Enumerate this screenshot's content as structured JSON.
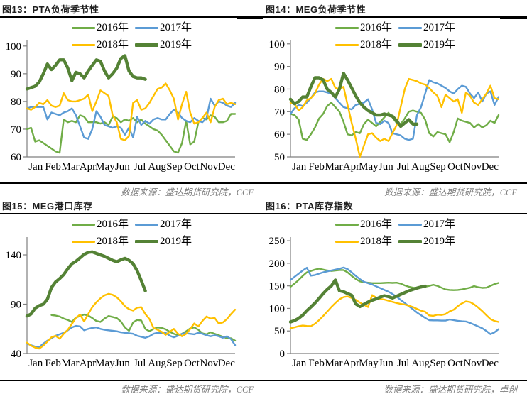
{
  "colors": {
    "y2016": "#70AD47",
    "y2017": "#5B9BD5",
    "y2018": "#FFC000",
    "y2019": "#548235",
    "axis": "#7f7f7f",
    "tick_text": "#000000",
    "rule": "#000000",
    "source_text": "#7f7f7f",
    "title_text": "#1f1f1f"
  },
  "chart_data": [
    {
      "type": "line",
      "title": "图13：PTA负荷季节性",
      "source": "数据来源：盛达期货研究院，CCF",
      "x_categories": [
        "Jan",
        "Feb",
        "Mar",
        "Apr",
        "May",
        "Jun",
        "Jul",
        "Aug",
        "Sep",
        "Oct",
        "Nov",
        "Dec"
      ],
      "x_points": 52,
      "ylim": [
        60,
        102
      ],
      "yticks": [
        60,
        70,
        80,
        90,
        100
      ],
      "grid": false,
      "legend_position": "top-center",
      "series": [
        {
          "name": "2016年",
          "color_key": "y2016",
          "emphasis": false,
          "values": [
            70,
            70.5,
            65.5,
            66,
            65,
            64,
            63,
            62,
            61.5,
            73.5,
            72.5,
            73,
            72.5,
            75,
            74.5,
            72.5,
            72.5,
            72.5,
            72,
            72.5,
            71.5,
            74.5,
            74,
            72.5,
            73.5,
            73,
            74,
            72.5,
            73.5,
            72,
            71,
            70,
            69.5,
            68,
            66,
            64,
            62,
            61.5,
            65,
            73,
            64.5,
            65.5,
            72.5,
            74,
            73.5,
            75,
            74.5,
            72.5,
            72.5,
            73,
            75.5,
            75.5
          ]
        },
        {
          "name": "2017年",
          "color_key": "y2017",
          "emphasis": false,
          "values": [
            77.5,
            78,
            78,
            78,
            78,
            73.5,
            76,
            75.5,
            75,
            76,
            76.5,
            77.5,
            75,
            71,
            67,
            66.5,
            70,
            76.5,
            74.5,
            71.5,
            71,
            70.5,
            71,
            70.5,
            68,
            70.5,
            67,
            74.5,
            71.5,
            73,
            72,
            73.5,
            74,
            73.5,
            73.5,
            75.5,
            77,
            76,
            74,
            73,
            72.5,
            74,
            73,
            72.5,
            74,
            81,
            78.5,
            80,
            79.5,
            78.5,
            78,
            79.5
          ]
        },
        {
          "name": "2018年",
          "color_key": "y2018",
          "emphasis": false,
          "values": [
            77.5,
            77,
            78,
            79.5,
            79,
            80.5,
            78.5,
            78,
            78.5,
            83,
            80.5,
            80,
            80,
            80.5,
            81,
            82.5,
            76.5,
            80,
            84,
            83,
            82,
            75,
            72.5,
            66.5,
            66,
            67.5,
            79.5,
            80.5,
            77,
            77.5,
            79.5,
            82,
            84.5,
            85,
            86.5,
            84,
            81,
            73.5,
            79,
            83.5,
            76,
            72,
            72.5,
            74,
            76,
            72.5,
            78,
            80.5,
            81,
            79,
            79.5,
            79
          ]
        },
        {
          "name": "2019年",
          "color_key": "y2019",
          "emphasis": true,
          "values": [
            84.5,
            85,
            85.5,
            87,
            90,
            93.5,
            91.5,
            93,
            95,
            95,
            92,
            87.5,
            90.5,
            90,
            88.5,
            91,
            93,
            95,
            94.5,
            91,
            88.5,
            90,
            92,
            95.5,
            96.5,
            91,
            89,
            88.5,
            88.5,
            88
          ]
        }
      ]
    },
    {
      "type": "line",
      "title": "图14：MEG负荷季节性",
      "source": "数据来源：盛达期货研究院，CCF",
      "x_categories": [
        "Jan",
        "Feb",
        "Mar",
        "Apr",
        "May",
        "Jun",
        "Jul",
        "Aug",
        "Sep",
        "Oct",
        "Nov",
        "Dec"
      ],
      "x_points": 52,
      "ylim": [
        50,
        101.5
      ],
      "yticks": [
        50,
        60,
        70,
        80,
        90,
        100
      ],
      "grid": false,
      "legend_position": "top-center",
      "series": [
        {
          "name": "2016年",
          "color_key": "y2016",
          "emphasis": false,
          "values": [
            69,
            68.5,
            66.5,
            58,
            57.5,
            60,
            63,
            67,
            69,
            72.5,
            74,
            72,
            70,
            65.5,
            60,
            59.5,
            61,
            60.5,
            64.5,
            66.5,
            65,
            63.5,
            65.5,
            67.5,
            69.5,
            67.5,
            65,
            64.5,
            67,
            70,
            70.5,
            70,
            69.5,
            66.5,
            60.5,
            59,
            61,
            60.5,
            60,
            56.5,
            61,
            67,
            66,
            65.5,
            65,
            63,
            64.5,
            63,
            64,
            66,
            65,
            68.5
          ]
        },
        {
          "name": "2017年",
          "color_key": "y2017",
          "emphasis": false,
          "values": [
            69,
            71.5,
            73,
            72.5,
            74,
            76,
            78.5,
            79,
            79,
            78.5,
            78,
            76,
            74,
            72,
            71.5,
            71,
            73,
            73.5,
            74,
            75.5,
            71,
            65,
            64.5,
            66,
            65,
            60.5,
            60,
            59.5,
            58,
            57.5,
            58,
            68.5,
            72,
            78,
            84,
            83,
            82.5,
            81.5,
            80.5,
            79,
            78,
            80,
            81.5,
            81,
            78,
            76,
            78.5,
            74.5,
            78,
            79,
            73,
            76.5
          ]
        },
        {
          "name": "2018年",
          "color_key": "y2018",
          "emphasis": false,
          "values": [
            74,
            73.5,
            70.5,
            72,
            75,
            76,
            78,
            82,
            84.5,
            83.5,
            84.5,
            80.5,
            80,
            81,
            73,
            65,
            58,
            50,
            55,
            60,
            60.5,
            58.5,
            57,
            58,
            57,
            60.5,
            64,
            72,
            80,
            84.5,
            84,
            83.5,
            82.5,
            82,
            80.5,
            78.5,
            77,
            72,
            77.5,
            76,
            74.5,
            75.5,
            69.5,
            78.5,
            77,
            74,
            73,
            75.5,
            78,
            81.5,
            76,
            75.5
          ]
        },
        {
          "name": "2019年",
          "color_key": "y2019",
          "emphasis": true,
          "values": [
            75.5,
            73.5,
            74.5,
            76.5,
            76.5,
            81,
            85,
            85,
            84,
            80,
            78.5,
            76.5,
            80,
            87,
            84,
            80.5,
            77,
            74,
            72,
            70.5,
            69.5,
            68.5,
            68.5,
            69,
            68.5,
            68,
            66,
            63.5,
            65,
            66.5,
            64.5,
            64.5
          ]
        }
      ]
    },
    {
      "type": "line",
      "title": "图15：MEG港口库存",
      "source": "数据来源：盛达期货研究院，CCF",
      "x_categories": [
        "Jan",
        "Feb",
        "Mar",
        "Apr",
        "May",
        "Jun",
        "Jul",
        "Aug",
        "Sep",
        "Oct",
        "Nov",
        "Dec"
      ],
      "x_points": 52,
      "ylim": [
        40,
        158
      ],
      "yticks": [
        40,
        90,
        140
      ],
      "grid": false,
      "legend_position": "top-center",
      "series": [
        {
          "name": "2016年",
          "color_key": "y2016",
          "emphasis": false,
          "values": [
            null,
            null,
            null,
            null,
            null,
            null,
            79,
            78.5,
            77.5,
            75.5,
            74,
            72,
            76.5,
            78,
            79.5,
            78.5,
            76,
            73,
            72,
            75.5,
            78,
            77,
            76,
            72.5,
            66.5,
            63,
            71.5,
            74,
            73.5,
            65,
            62.5,
            65,
            66.5,
            66,
            64.5,
            62,
            60,
            58.5,
            60,
            62.5,
            65.5,
            66.5,
            64,
            60.5,
            59.5,
            61.5,
            60,
            58.5,
            57,
            55.5,
            55.5,
            53
          ]
        },
        {
          "name": "2017年",
          "color_key": "y2017",
          "emphasis": false,
          "values": [
            50,
            48.5,
            47,
            46.5,
            50,
            53,
            55.5,
            58,
            59.5,
            61,
            63.5,
            66.5,
            68,
            67.5,
            63.5,
            65,
            66,
            66.5,
            65,
            64,
            63.5,
            63,
            62.5,
            61.5,
            61,
            60.5,
            60,
            58,
            57,
            56,
            57.5,
            60,
            61,
            60.5,
            61,
            58,
            56.5,
            58,
            60,
            60.5,
            60,
            59.5,
            61,
            60,
            58.5,
            57.5,
            58.5,
            57.5,
            56,
            57.5,
            54.5,
            48.5
          ]
        },
        {
          "name": "2018年",
          "color_key": "y2018",
          "emphasis": false,
          "values": [
            51,
            48,
            46,
            45,
            48,
            52,
            56.5,
            58,
            55,
            60,
            64,
            70,
            76,
            79.5,
            72.5,
            80,
            87,
            92,
            96,
            99,
            100.5,
            99.5,
            97,
            93,
            88,
            85,
            83.5,
            86.5,
            87,
            80,
            75,
            66,
            64,
            62,
            59,
            62,
            65,
            60,
            57.5,
            60,
            65,
            70.5,
            67.5,
            73,
            77.5,
            75.5,
            76,
            70.5,
            71.5,
            75,
            80,
            84.5
          ]
        },
        {
          "name": "2019年",
          "color_key": "y2019",
          "emphasis": true,
          "values": [
            78,
            80,
            86,
            88.5,
            90,
            95,
            107,
            112.5,
            116,
            120,
            126,
            131,
            133.5,
            137,
            140.5,
            142.5,
            143,
            141.5,
            140,
            138.5,
            136.5,
            134.5,
            133,
            135,
            136.5,
            134.5,
            131,
            124,
            114,
            103.5
          ]
        }
      ]
    },
    {
      "type": "line",
      "title": "图16：PTA库存指数",
      "source": "数据来源：盛达期货研究院，卓创",
      "x_categories": [
        "Jan",
        "Feb",
        "Mar",
        "Apr",
        "May",
        "Jun",
        "Jul",
        "Aug",
        "Sep",
        "Oct",
        "Nov",
        "Dec"
      ],
      "x_points": 52,
      "ylim": [
        0,
        258
      ],
      "yticks": [
        0,
        50,
        100,
        150,
        200,
        250
      ],
      "grid": false,
      "legend_position": "top-center",
      "series": [
        {
          "name": "2016年",
          "color_key": "y2016",
          "emphasis": false,
          "values": [
            148,
            155,
            163,
            172,
            180,
            183,
            186,
            188,
            186,
            184,
            183,
            184,
            185,
            185,
            180,
            172,
            165,
            160,
            158,
            157,
            156,
            156,
            156,
            156.5,
            157,
            156.5,
            157,
            155,
            151,
            148,
            146,
            145.5,
            146,
            148,
            150,
            152.5,
            150,
            146,
            142,
            141,
            140.5,
            141,
            142,
            144,
            146,
            149.5,
            147,
            145.5,
            146,
            150,
            154,
            156.5
          ]
        },
        {
          "name": "2017年",
          "color_key": "y2017",
          "emphasis": false,
          "values": [
            163,
            170,
            177,
            184,
            190,
            172.5,
            174,
            177,
            180,
            182,
            184,
            186,
            188,
            190.5,
            187,
            180,
            172,
            165,
            159,
            156,
            153,
            149,
            145,
            141,
            137,
            132,
            126,
            119,
            112,
            105,
            98,
            91,
            85,
            79,
            74,
            73.5,
            73.5,
            73,
            73,
            75.5,
            74,
            72.5,
            71.5,
            71,
            68,
            64,
            60,
            56,
            50,
            43,
            47,
            54
          ]
        },
        {
          "name": "2018年",
          "color_key": "y2018",
          "emphasis": false,
          "values": [
            56,
            58,
            60.5,
            62,
            61,
            60.5,
            66,
            74,
            83,
            93,
            103,
            112,
            120,
            125,
            126.5,
            123,
            119,
            113,
            108,
            103,
            129.5,
            124,
            121,
            119.5,
            117,
            114.5,
            112,
            110,
            108.5,
            106,
            103,
            99,
            95,
            92.5,
            84.5,
            83.5,
            86,
            85.5,
            87.5,
            93.5,
            97,
            105,
            111,
            115.5,
            114,
            109,
            102,
            94,
            85,
            76.5,
            72,
            70
          ]
        },
        {
          "name": "2019年",
          "color_key": "y2019",
          "emphasis": true,
          "values": [
            70,
            73,
            78,
            85,
            95,
            103,
            112,
            122,
            133,
            142,
            150,
            163,
            139,
            137,
            133,
            129,
            110,
            104,
            109,
            114,
            118,
            121,
            125,
            128,
            126,
            123,
            127,
            131,
            135,
            139,
            142,
            145,
            147.5,
            149.5
          ]
        }
      ]
    }
  ]
}
